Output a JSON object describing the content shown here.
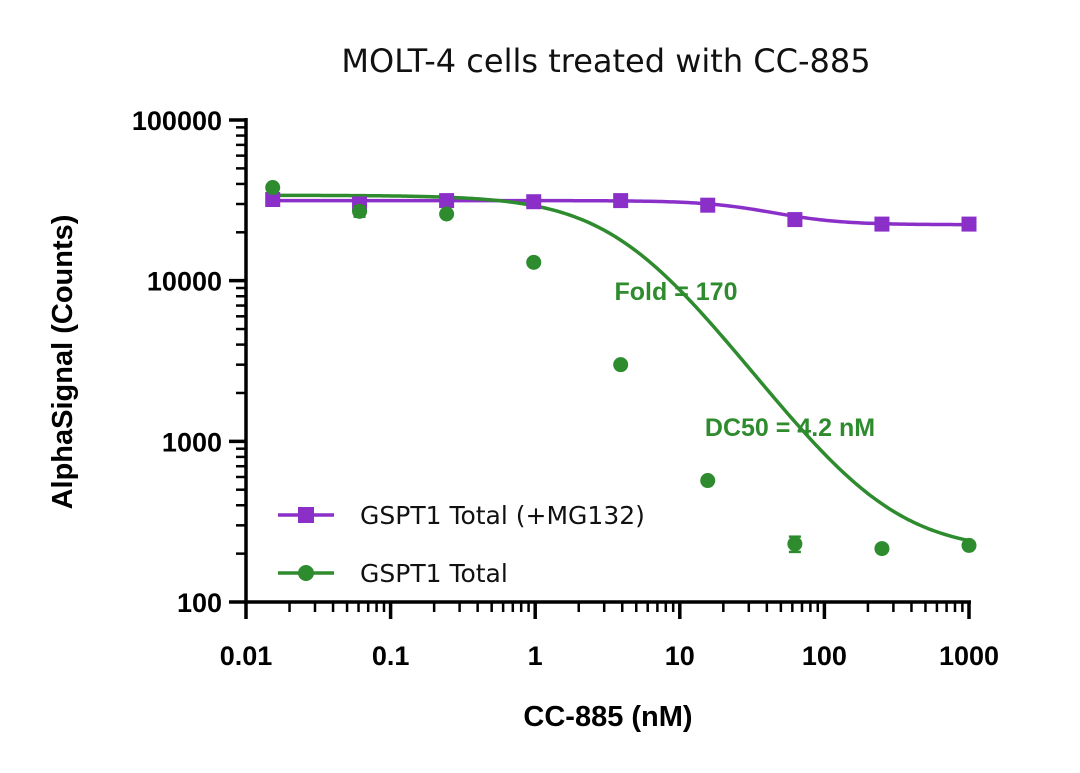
{
  "chart_data": {
    "type": "line",
    "title": "MOLT-4 cells treated with CC-885",
    "xlabel": "CC-885 (nM)",
    "ylabel": "AlphaSignal (Counts)",
    "xscale": "log",
    "yscale": "log",
    "xlim": [
      0.01,
      1000
    ],
    "ylim": [
      100,
      100000
    ],
    "xticks": [
      0.01,
      0.1,
      1,
      10,
      100,
      1000
    ],
    "xtick_labels": [
      "0.01",
      "0.1",
      "1",
      "10",
      "100",
      "1000"
    ],
    "yticks": [
      100,
      1000,
      10000,
      100000
    ],
    "ytick_labels": [
      "100",
      "1000",
      "10000",
      "100000"
    ],
    "grid": false,
    "legend_position": "bottom-left",
    "series": [
      {
        "name": "GSPT1 Total (+MG132)",
        "color": "#8B2FC9",
        "marker": "square",
        "x": [
          0.0153,
          0.061,
          0.244,
          0.977,
          3.9,
          15.6,
          62.5,
          250,
          1000
        ],
        "y": [
          32000,
          30000,
          31500,
          31000,
          31500,
          29500,
          24000,
          22500,
          22500
        ],
        "fit": {
          "top": 31500,
          "bottom": 22300,
          "ec50": 40,
          "hill": 1.8
        }
      },
      {
        "name": "GSPT1 Total",
        "color": "#2E8B2E",
        "marker": "circle",
        "x": [
          0.0153,
          0.061,
          0.244,
          0.977,
          3.9,
          15.6,
          62.5,
          250,
          1000
        ],
        "y": [
          38000,
          27000,
          26000,
          13000,
          3000,
          570,
          230,
          215,
          225
        ],
        "error": [
          2500,
          2000,
          1200,
          700,
          150,
          35,
          25,
          10,
          15
        ],
        "fit": {
          "top": 34000,
          "bottom": 205,
          "ec50": 4.2,
          "hill": 1.25
        }
      }
    ],
    "annotations": [
      {
        "text": "Fold = 170",
        "color": "#2E8B2E"
      },
      {
        "text": "DC50 = 4.2 nM",
        "color": "#2E8B2E"
      }
    ]
  }
}
